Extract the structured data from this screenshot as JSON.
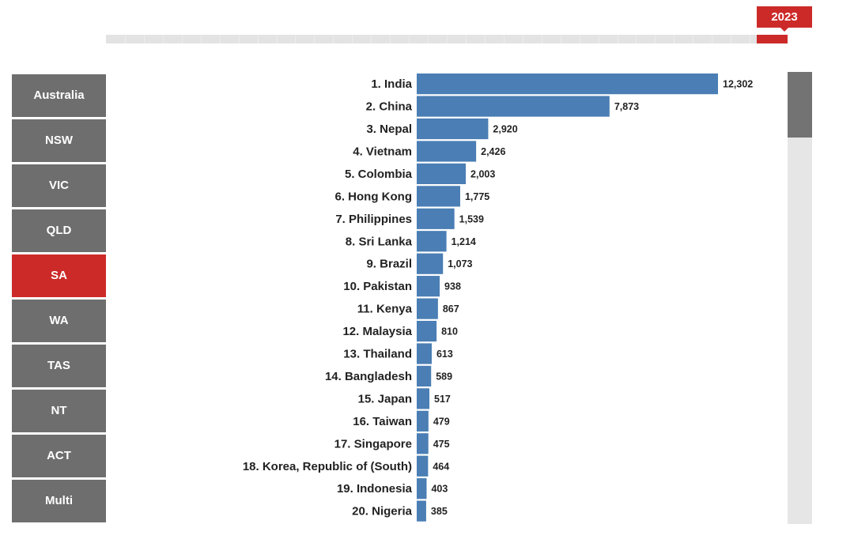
{
  "timeline": {
    "selected_year": "2023",
    "progress": 0.955
  },
  "states": [
    {
      "label": "Australia",
      "active": false
    },
    {
      "label": "NSW",
      "active": false
    },
    {
      "label": "VIC",
      "active": false
    },
    {
      "label": "QLD",
      "active": false
    },
    {
      "label": "SA",
      "active": true
    },
    {
      "label": "WA",
      "active": false
    },
    {
      "label": "TAS",
      "active": false
    },
    {
      "label": "NT",
      "active": false
    },
    {
      "label": "ACT",
      "active": false
    },
    {
      "label": "Multi",
      "active": false
    }
  ],
  "colors": {
    "bar": "#4a7eb4",
    "accent": "#cc2a28",
    "button": "#6e6e6e"
  },
  "chart_data": {
    "type": "bar",
    "orientation": "horizontal",
    "categories": [
      "1. India",
      "2. China",
      "3. Nepal",
      "4. Vietnam",
      "5. Colombia",
      "6. Hong Kong",
      "7. Philippines",
      "8. Sri Lanka",
      "9. Brazil",
      "10. Pakistan",
      "11. Kenya",
      "12. Malaysia",
      "13. Thailand",
      "14. Bangladesh",
      "15. Japan",
      "16. Taiwan",
      "17. Singapore",
      "18. Korea, Republic of (South)",
      "19. Indonesia",
      "20. Nigeria"
    ],
    "values": [
      12302,
      7873,
      2920,
      2426,
      2003,
      1775,
      1539,
      1214,
      1073,
      938,
      867,
      810,
      613,
      589,
      517,
      479,
      475,
      464,
      403,
      385
    ],
    "value_labels": [
      "12,302",
      "7,873",
      "2,920",
      "2,426",
      "2,003",
      "1,775",
      "1,539",
      "1,214",
      "1,073",
      "938",
      "867",
      "810",
      "613",
      "589",
      "517",
      "479",
      "475",
      "464",
      "403",
      "385"
    ],
    "xlim": [
      0,
      12302
    ],
    "grid": false,
    "legend": "none"
  },
  "scrollbar": {
    "position": 0.0,
    "visible_fraction": 0.145
  }
}
